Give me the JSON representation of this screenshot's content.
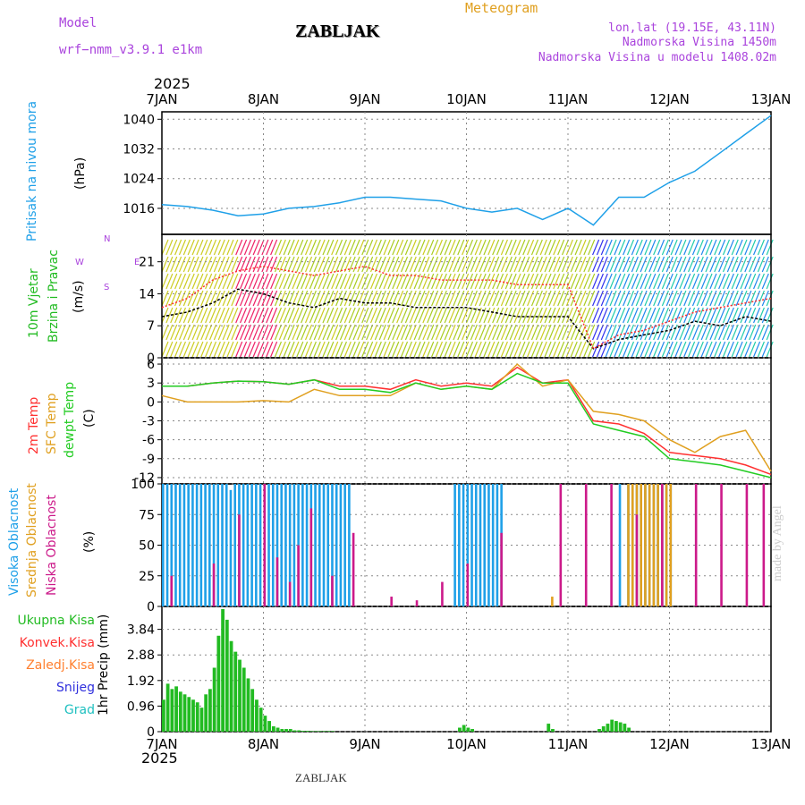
{
  "header": {
    "model_label": "Model",
    "model_name": "wrf−nmm_v3.9.1  e1km",
    "station": "ZABLJAK",
    "product": "Meteogram",
    "coords": "lon,lat (19.15E, 43.11N)",
    "altitude": "Nadmorska Visina 1450m",
    "model_altitude": "Nadmorska Visina u modelu 1408.02m",
    "year_top": "2025",
    "year_bottom": "2025",
    "footer_station": "ZABLJAK",
    "watermark": "made by Angel"
  },
  "colors": {
    "pressure": "#1fa0e8",
    "temp2m": "#ff3030",
    "sfc_temp": "#e0a020",
    "dewpt": "#22cc22",
    "high_cloud": "#1fa0e8",
    "mid_cloud": "#e0a020",
    "low_cloud": "#cc1a8a",
    "total_precip": "#22bb22",
    "conv_precip": "#ff3030",
    "frozen_precip": "#ff8030",
    "snow": "#3030dd",
    "graupel": "#20c0c0",
    "wind_black": "#000000",
    "wind_red": "#ff3030",
    "wind_dir_label": "#aa44dd"
  },
  "chart_data": [
    {
      "type": "line",
      "panel": "pressure",
      "ylabel_lines": [
        "Pritisak na nivou mora",
        "(hPa)"
      ],
      "yticks": [
        1016,
        1024,
        1032,
        1040
      ],
      "ylim": [
        1009,
        1042
      ],
      "x": [
        0,
        6,
        12,
        18,
        24,
        30,
        36,
        42,
        48,
        54,
        60,
        66,
        72,
        78,
        84,
        90,
        96,
        102,
        108,
        114,
        120,
        126,
        132,
        138,
        144
      ],
      "series": [
        {
          "name": "Pritisak na nivou mora",
          "color_key": "pressure",
          "values": [
            1017,
            1016.5,
            1015.5,
            1014,
            1014.5,
            1016,
            1016.5,
            1017.5,
            1019,
            1019,
            1018.5,
            1018,
            1016,
            1015,
            1016,
            1013,
            1016,
            1011.5,
            1019,
            1019,
            1023,
            1026,
            1031,
            1036,
            1041
          ]
        }
      ]
    },
    {
      "type": "line",
      "panel": "wind",
      "ylabel_lines": [
        "10m Vjetar",
        "Brzina i Pravac",
        "(m/s)"
      ],
      "yticks": [
        0,
        7,
        14,
        21
      ],
      "ylim": [
        0,
        27
      ],
      "x": [
        0,
        6,
        12,
        18,
        24,
        30,
        36,
        42,
        48,
        54,
        60,
        66,
        72,
        78,
        84,
        90,
        96,
        102,
        108,
        114,
        120,
        126,
        132,
        138,
        144
      ],
      "series": [
        {
          "name": "",
          "color_key": "wind_black",
          "values": [
            9,
            10,
            12,
            15,
            14,
            12,
            11,
            13,
            12,
            12,
            11,
            11,
            11,
            10,
            9,
            9,
            9,
            2,
            4,
            5,
            6,
            8,
            7,
            9,
            8
          ]
        },
        {
          "name": "",
          "color_key": "wind_red",
          "values": [
            11,
            13,
            17,
            19,
            20,
            19,
            18,
            19,
            20,
            18,
            18,
            17,
            17,
            17,
            16,
            16,
            16,
            2,
            5,
            6,
            8,
            10,
            11,
            12,
            13
          ]
        }
      ],
      "direction_legend": [
        "W",
        "N",
        "E",
        "S"
      ]
    },
    {
      "type": "line",
      "panel": "temperature",
      "ylabel_lines": [
        "2m Temp",
        "SFC Temp",
        "dewpt Temp",
        "(C)"
      ],
      "yticks": [
        6,
        3,
        0,
        -3,
        -6,
        -9,
        -12
      ],
      "ylim": [
        -13,
        7
      ],
      "x": [
        0,
        6,
        12,
        18,
        24,
        30,
        36,
        42,
        48,
        54,
        60,
        66,
        72,
        78,
        84,
        90,
        96,
        102,
        108,
        114,
        120,
        126,
        132,
        138,
        144
      ],
      "series": [
        {
          "name": "2m Temp",
          "color_key": "temp2m",
          "values": [
            2.5,
            2.5,
            3,
            3.3,
            3.2,
            2.8,
            3.5,
            2.5,
            2.5,
            2,
            3.5,
            2.5,
            3,
            2.5,
            5.5,
            3,
            3.5,
            -3,
            -3.5,
            -5,
            -8,
            -8.5,
            -9,
            -10,
            -11.5
          ]
        },
        {
          "name": "SFC Temp",
          "color_key": "sfc_temp",
          "values": [
            1,
            0,
            0,
            0,
            0.2,
            0,
            2,
            1,
            1,
            1,
            3,
            2,
            2.5,
            2,
            6,
            2.5,
            3.5,
            -1.5,
            -2,
            -3,
            -6,
            -8,
            -5.5,
            -4.5,
            -11
          ]
        },
        {
          "name": "dewpt Temp",
          "color_key": "dewpt",
          "values": [
            2.5,
            2.5,
            3,
            3.3,
            3.2,
            2.8,
            3.5,
            2,
            2,
            1.5,
            3,
            2,
            2.5,
            2,
            4.5,
            3,
            3,
            -3.5,
            -4.5,
            -5.5,
            -9,
            -9.5,
            -10,
            -11,
            -12
          ]
        }
      ]
    },
    {
      "type": "bar",
      "panel": "cloud",
      "ylabel_lines": [
        "Visoka Oblacnost",
        "Srednja Oblacnost",
        "Niska Oblacnost",
        "(%)"
      ],
      "yticks": [
        0,
        25,
        50,
        75,
        100
      ],
      "ylim": [
        0,
        100
      ],
      "series": [
        {
          "name": "Visoka Oblacnost",
          "color_key": "high_cloud",
          "x": [
            0,
            1,
            2,
            3,
            4,
            5,
            6,
            7,
            8,
            9,
            10,
            11,
            12,
            13,
            14,
            15,
            16,
            17,
            18,
            19,
            20,
            21,
            22,
            23,
            24,
            25,
            26,
            27,
            28,
            29,
            30,
            31,
            32,
            33,
            34,
            35,
            36,
            37,
            38,
            39,
            40,
            41,
            42,
            43,
            44,
            69,
            70,
            71,
            72,
            73,
            74,
            75,
            76,
            77,
            78,
            79,
            80,
            108,
            110,
            111,
            112,
            113,
            114,
            115,
            116,
            117,
            118,
            119,
            120
          ],
          "values": [
            100,
            100,
            100,
            100,
            100,
            100,
            100,
            100,
            100,
            100,
            100,
            100,
            100,
            100,
            100,
            100,
            95,
            100,
            100,
            100,
            100,
            100,
            100,
            100,
            100,
            100,
            100,
            100,
            100,
            100,
            100,
            100,
            100,
            100,
            100,
            100,
            100,
            100,
            100,
            100,
            100,
            100,
            100,
            100,
            100,
            100,
            100,
            100,
            100,
            100,
            100,
            100,
            100,
            100,
            100,
            100,
            100,
            100,
            100,
            100,
            100,
            100,
            100,
            100,
            100,
            100,
            100,
            100,
            100
          ]
        },
        {
          "name": "Srednja Oblacnost",
          "color_key": "mid_cloud",
          "x": [
            92,
            110,
            111,
            112,
            113,
            114,
            115,
            116,
            117,
            118,
            119,
            120
          ],
          "values": [
            8,
            100,
            100,
            100,
            100,
            100,
            100,
            100,
            100,
            100,
            100,
            100
          ]
        },
        {
          "name": "Niska Oblacnost",
          "color_key": "low_cloud",
          "x": [
            2,
            12,
            18,
            24,
            27,
            30,
            32,
            35,
            40,
            45,
            54,
            60,
            66,
            72,
            80,
            94,
            100,
            106,
            112,
            118,
            126,
            132,
            138,
            142
          ],
          "values": [
            25,
            35,
            75,
            100,
            40,
            20,
            50,
            80,
            25,
            60,
            8,
            5,
            20,
            35,
            60,
            100,
            100,
            100,
            75,
            100,
            100,
            100,
            100,
            100
          ]
        }
      ]
    },
    {
      "type": "bar",
      "panel": "precip",
      "ylabel_lines": [
        "1hr Precip (mm)"
      ],
      "legend": [
        "Ukupna Kisa",
        "Konvek.Kisa",
        "Zaledj.Kisa",
        "Snijeg",
        "Grad"
      ],
      "yticks": [
        0,
        0.96,
        1.92,
        2.88,
        3.84
      ],
      "ylim": [
        0,
        4.7
      ],
      "series": [
        {
          "name": "Ukupna Kisa",
          "color_key": "total_precip",
          "x": [
            0,
            1,
            2,
            3,
            4,
            5,
            6,
            7,
            8,
            9,
            10,
            11,
            12,
            13,
            14,
            15,
            16,
            17,
            18,
            19,
            20,
            21,
            22,
            23,
            24,
            25,
            26,
            27,
            28,
            29,
            30,
            31,
            32,
            33,
            34,
            35,
            36,
            37,
            38,
            39,
            40,
            70,
            71,
            72,
            73,
            91,
            92,
            103,
            104,
            105,
            106,
            107,
            108,
            109,
            110
          ],
          "values": [
            1.2,
            1.8,
            1.6,
            1.7,
            1.5,
            1.4,
            1.3,
            1.2,
            1.1,
            0.9,
            1.4,
            1.6,
            2.4,
            3.6,
            4.6,
            4.2,
            3.4,
            3.0,
            2.7,
            2.4,
            2.0,
            1.6,
            1.2,
            0.9,
            0.6,
            0.4,
            0.2,
            0.15,
            0.1,
            0.1,
            0.1,
            0.05,
            0.05,
            0.03,
            0.03,
            0.02,
            0.02,
            0.02,
            0.02,
            0.02,
            0.02,
            0.15,
            0.25,
            0.15,
            0.1,
            0.3,
            0.1,
            0.1,
            0.2,
            0.3,
            0.45,
            0.4,
            0.35,
            0.3,
            0.15
          ]
        }
      ]
    }
  ],
  "time_axis": {
    "labels": [
      "7JAN",
      "8JAN",
      "9JAN",
      "10JAN",
      "11JAN",
      "12JAN",
      "13JAN"
    ]
  }
}
